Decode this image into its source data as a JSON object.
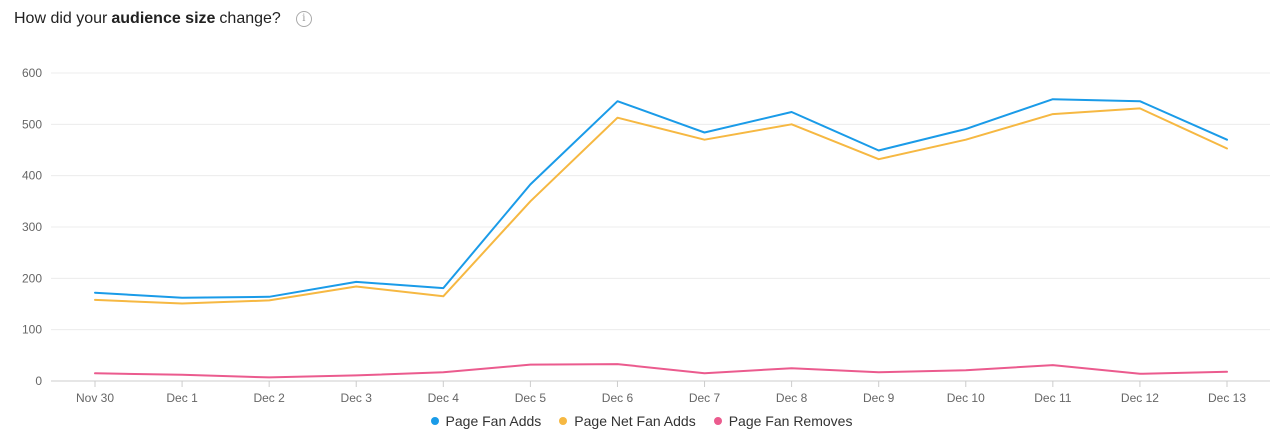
{
  "header": {
    "prefix": "How did your",
    "bold": "audience size",
    "suffix": "change?",
    "info_icon": "info-icon"
  },
  "chart_data": {
    "type": "line",
    "title": "How did your audience size change?",
    "xlabel": "",
    "ylabel": "",
    "ylim": [
      0,
      600
    ],
    "yticks": [
      0,
      100,
      200,
      300,
      400,
      500,
      600
    ],
    "grid": true,
    "legend_position": "bottom",
    "categories": [
      "Nov 30",
      "Dec 1",
      "Dec 2",
      "Dec 3",
      "Dec 4",
      "Dec 5",
      "Dec 6",
      "Dec 7",
      "Dec 8",
      "Dec 9",
      "Dec 10",
      "Dec 11",
      "Dec 12",
      "Dec 13"
    ],
    "series": [
      {
        "name": "Page Fan Adds",
        "color": "#1a9be8",
        "values": [
          172,
          162,
          164,
          193,
          181,
          383,
          545,
          484,
          524,
          449,
          491,
          549,
          545,
          470
        ]
      },
      {
        "name": "Page Net Fan Adds",
        "color": "#f6b842",
        "values": [
          158,
          151,
          157,
          184,
          165,
          350,
          513,
          470,
          500,
          432,
          470,
          520,
          531,
          453
        ]
      },
      {
        "name": "Page Fan Removes",
        "color": "#eb5b8e",
        "values": [
          15,
          12,
          7,
          11,
          17,
          32,
          33,
          15,
          25,
          17,
          21,
          31,
          14,
          18
        ]
      }
    ]
  }
}
